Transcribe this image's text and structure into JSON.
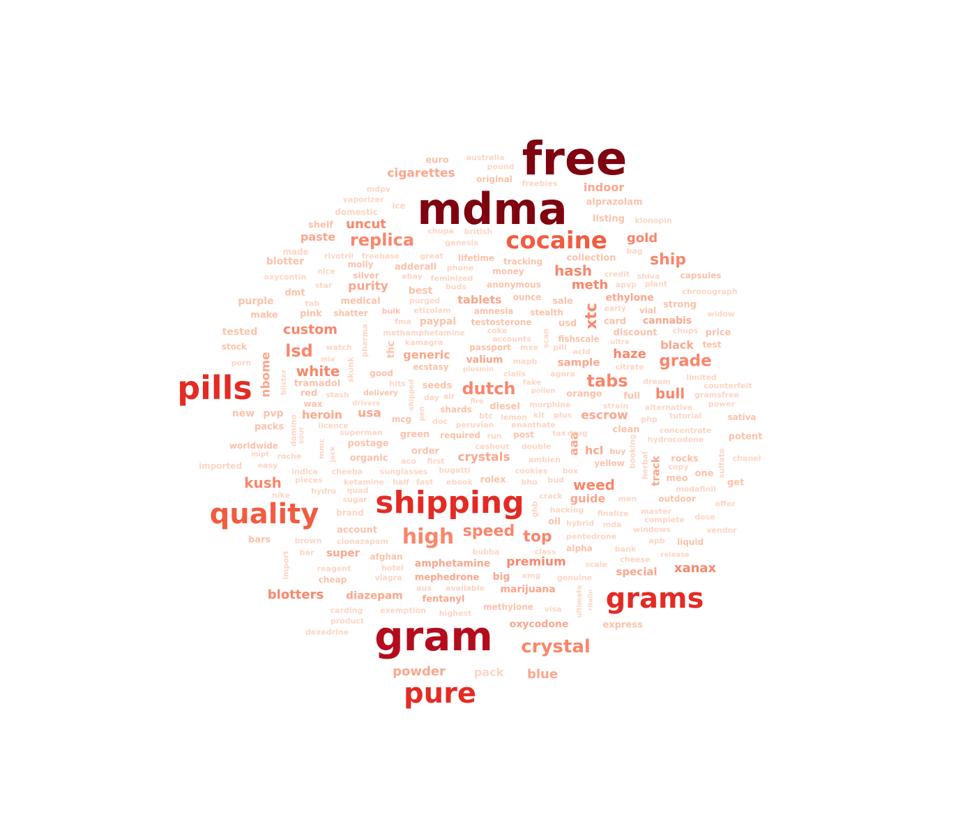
{
  "word_cloud": {
    "colors": {
      "tier1": "#7f0410",
      "tier2": "#b30d1d",
      "tier3": "#e32b24",
      "tier4": "#f25b40",
      "tier5": "#f9866b",
      "tier6": "#fba68c",
      "tier7": "#fcc1aa",
      "tier8": "#fdd5c4"
    },
    "words": [
      {
        "text": "free",
        "tier": 1
      },
      {
        "text": "mdma",
        "tier": 1
      },
      {
        "text": "gram",
        "tier": 2
      },
      {
        "text": "shipping",
        "tier": 3
      },
      {
        "text": "pills",
        "tier": 3
      },
      {
        "text": "grams",
        "tier": 3
      },
      {
        "text": "pure",
        "tier": 3
      },
      {
        "text": "quality",
        "tier": 4
      },
      {
        "text": "cocaine",
        "tier": 4
      },
      {
        "text": "high",
        "tier": 5
      },
      {
        "text": "crystal",
        "tier": 5
      },
      {
        "text": "replica",
        "tier": 5
      },
      {
        "text": "dutch",
        "tier": 5
      },
      {
        "text": "lsd",
        "tier": 5
      },
      {
        "text": "tabs",
        "tier": 5
      },
      {
        "text": "grade",
        "tier": 5
      },
      {
        "text": "speed",
        "tier": 5
      },
      {
        "text": "top",
        "tier": 5
      },
      {
        "text": "xtc",
        "tier": 5
      },
      {
        "text": "hash",
        "tier": 5
      },
      {
        "text": "ship",
        "tier": 5
      },
      {
        "text": "kush",
        "tier": 5
      },
      {
        "text": "weed",
        "tier": 5
      },
      {
        "text": "white",
        "tier": 5
      },
      {
        "text": "custom",
        "tier": 5
      },
      {
        "text": "meth",
        "tier": 5
      },
      {
        "text": "bull",
        "tier": 5
      },
      {
        "text": "haze",
        "tier": 5
      },
      {
        "text": "gold",
        "tier": 5
      },
      {
        "text": "uncut",
        "tier": 5
      },
      {
        "text": "xanax",
        "tier": 5
      },
      {
        "text": "blotters",
        "tier": 5
      },
      {
        "text": "premium",
        "tier": 5
      },
      {
        "text": "cigarettes",
        "tier": 6
      },
      {
        "text": "purity",
        "tier": 6
      },
      {
        "text": "tablets",
        "tier": 6
      },
      {
        "text": "crystals",
        "tier": 6
      },
      {
        "text": "escrow",
        "tier": 6
      },
      {
        "text": "powder",
        "tier": 6
      },
      {
        "text": "blue",
        "tier": 6
      },
      {
        "text": "nbome",
        "tier": 6
      },
      {
        "text": "aaa",
        "tier": 6
      },
      {
        "text": "track",
        "tier": 6
      },
      {
        "text": "hcl",
        "tier": 6
      },
      {
        "text": "usa",
        "tier": 6
      },
      {
        "text": "indoor",
        "tier": 6
      },
      {
        "text": "paste",
        "tier": 6
      },
      {
        "text": "heroin",
        "tier": 6
      },
      {
        "text": "generic",
        "tier": 6
      },
      {
        "text": "guide",
        "tier": 6
      },
      {
        "text": "diazepam",
        "tier": 6
      },
      {
        "text": "special",
        "tier": 6
      },
      {
        "text": "black",
        "tier": 6
      },
      {
        "text": "sample",
        "tier": 6
      },
      {
        "text": "marijuana",
        "tier": 6
      },
      {
        "text": "super",
        "tier": 6
      },
      {
        "text": "oxycodone",
        "tier": 6
      },
      {
        "text": "amphetamine",
        "tier": 6
      },
      {
        "text": "ethylone",
        "tier": 6
      },
      {
        "text": "cannabis",
        "tier": 6
      },
      {
        "text": "valium",
        "tier": 6
      },
      {
        "text": "mephedrone",
        "tier": 6
      },
      {
        "text": "fentanyl",
        "tier": 6
      },
      {
        "text": "big",
        "tier": 6
      },
      {
        "text": "pack",
        "tier": 8
      },
      {
        "text": "euro",
        "tier": 7
      },
      {
        "text": "australia",
        "tier": 8
      },
      {
        "text": "pound",
        "tier": 8
      },
      {
        "text": "original",
        "tier": 7
      },
      {
        "text": "freebies",
        "tier": 8
      },
      {
        "text": "mdpv",
        "tier": 8
      },
      {
        "text": "vaporizer",
        "tier": 8
      },
      {
        "text": "ice",
        "tier": 8
      },
      {
        "text": "alprazolam",
        "tier": 7
      },
      {
        "text": "domestic",
        "tier": 8
      },
      {
        "text": "listing",
        "tier": 7
      },
      {
        "text": "shelf",
        "tier": 7
      },
      {
        "text": "klonopin",
        "tier": 8
      },
      {
        "text": "chupa",
        "tier": 8
      },
      {
        "text": "british",
        "tier": 8
      },
      {
        "text": "genesis",
        "tier": 8
      },
      {
        "text": "bag",
        "tier": 8
      },
      {
        "text": "made",
        "tier": 8
      },
      {
        "text": "rivotril",
        "tier": 8
      },
      {
        "text": "freebase",
        "tier": 8
      },
      {
        "text": "great",
        "tier": 8
      },
      {
        "text": "lifetime",
        "tier": 7
      },
      {
        "text": "collection",
        "tier": 7
      },
      {
        "text": "blotter",
        "tier": 7
      },
      {
        "text": "molly",
        "tier": 7
      },
      {
        "text": "adderall",
        "tier": 7
      },
      {
        "text": "phone",
        "tier": 8
      },
      {
        "text": "tracking",
        "tier": 7
      },
      {
        "text": "money",
        "tier": 7
      },
      {
        "text": "nice",
        "tier": 8
      },
      {
        "text": "credit",
        "tier": 8
      },
      {
        "text": "oxycontin",
        "tier": 8
      },
      {
        "text": "silver",
        "tier": 7
      },
      {
        "text": "ebay",
        "tier": 8
      },
      {
        "text": "feminized",
        "tier": 8
      },
      {
        "text": "shiva",
        "tier": 8
      },
      {
        "text": "capsules",
        "tier": 7
      },
      {
        "text": "star",
        "tier": 8
      },
      {
        "text": "buds",
        "tier": 8
      },
      {
        "text": "anonymous",
        "tier": 7
      },
      {
        "text": "apvp",
        "tier": 8
      },
      {
        "text": "plant",
        "tier": 8
      },
      {
        "text": "dmt",
        "tier": 7
      },
      {
        "text": "best",
        "tier": 7
      },
      {
        "text": "chronograph",
        "tier": 8
      },
      {
        "text": "purple",
        "tier": 7
      },
      {
        "text": "tab",
        "tier": 8
      },
      {
        "text": "medical",
        "tier": 7
      },
      {
        "text": "purged",
        "tier": 8
      },
      {
        "text": "ounce",
        "tier": 7
      },
      {
        "text": "sale",
        "tier": 7
      },
      {
        "text": "strong",
        "tier": 7
      },
      {
        "text": "make",
        "tier": 7
      },
      {
        "text": "pink",
        "tier": 7
      },
      {
        "text": "shatter",
        "tier": 7
      },
      {
        "text": "bulk",
        "tier": 7
      },
      {
        "text": "etizolam",
        "tier": 8
      },
      {
        "text": "amnesia",
        "tier": 7
      },
      {
        "text": "stealth",
        "tier": 7
      },
      {
        "text": "early",
        "tier": 8
      },
      {
        "text": "vial",
        "tier": 7
      },
      {
        "text": "widow",
        "tier": 8
      },
      {
        "text": "paypal",
        "tier": 7
      },
      {
        "text": "testosterone",
        "tier": 7
      },
      {
        "text": "usd",
        "tier": 7
      },
      {
        "text": "card",
        "tier": 7
      },
      {
        "text": "fma",
        "tier": 8
      },
      {
        "text": "tested",
        "tier": 7
      },
      {
        "text": "coke",
        "tier": 8
      },
      {
        "text": "chups",
        "tier": 8
      },
      {
        "text": "price",
        "tier": 7
      },
      {
        "text": "methamphetamine",
        "tier": 8
      },
      {
        "text": "discount",
        "tier": 7
      },
      {
        "text": "fishscale",
        "tier": 7
      },
      {
        "text": "accounts",
        "tier": 8
      },
      {
        "text": "stock",
        "tier": 7
      },
      {
        "text": "kamagra",
        "tier": 8
      },
      {
        "text": "ultra",
        "tier": 8
      },
      {
        "text": "test",
        "tier": 7
      },
      {
        "text": "watch",
        "tier": 8
      },
      {
        "text": "passport",
        "tier": 7
      },
      {
        "text": "mxe",
        "tier": 8
      },
      {
        "text": "pill",
        "tier": 8
      },
      {
        "text": "acid",
        "tier": 8
      },
      {
        "text": "mix",
        "tier": 8
      },
      {
        "text": "mapb",
        "tier": 8
      },
      {
        "text": "citrate",
        "tier": 8
      },
      {
        "text": "porn",
        "tier": 8
      },
      {
        "text": "ecstasy",
        "tier": 7
      },
      {
        "text": "good",
        "tier": 7
      },
      {
        "text": "plusmin",
        "tier": 8
      },
      {
        "text": "cialis",
        "tier": 8
      },
      {
        "text": "agora",
        "tier": 8
      },
      {
        "text": "limited",
        "tier": 8
      },
      {
        "text": "tramadol",
        "tier": 7
      },
      {
        "text": "hits",
        "tier": 8
      },
      {
        "text": "fake",
        "tier": 8
      },
      {
        "text": "dream",
        "tier": 8
      },
      {
        "text": "counterfeit",
        "tier": 8
      },
      {
        "text": "seeds",
        "tier": 7
      },
      {
        "text": "pollen",
        "tier": 8
      },
      {
        "text": "red",
        "tier": 7
      },
      {
        "text": "delivery",
        "tier": 7
      },
      {
        "text": "stash",
        "tier": 8
      },
      {
        "text": "day",
        "tier": 8
      },
      {
        "text": "air",
        "tier": 8
      },
      {
        "text": "orange",
        "tier": 7
      },
      {
        "text": "full",
        "tier": 7
      },
      {
        "text": "gramsfree",
        "tier": 8
      },
      {
        "text": "fire",
        "tier": 8
      },
      {
        "text": "wax",
        "tier": 7
      },
      {
        "text": "drivers",
        "tier": 8
      },
      {
        "text": "power",
        "tier": 8
      },
      {
        "text": "diesel",
        "tier": 7
      },
      {
        "text": "morphine",
        "tier": 8
      },
      {
        "text": "strain",
        "tier": 8
      },
      {
        "text": "alternative",
        "tier": 8
      },
      {
        "text": "shards",
        "tier": 7
      },
      {
        "text": "btc",
        "tier": 8
      },
      {
        "text": "lemon",
        "tier": 8
      },
      {
        "text": "kit",
        "tier": 8
      },
      {
        "text": "plus",
        "tier": 8
      },
      {
        "text": "tutorial",
        "tier": 8
      },
      {
        "text": "new",
        "tier": 7
      },
      {
        "text": "pvp",
        "tier": 7
      },
      {
        "text": "sativa",
        "tier": 7
      },
      {
        "text": "mcg",
        "tier": 7
      },
      {
        "text": "doc",
        "tier": 8
      },
      {
        "text": "php",
        "tier": 8
      },
      {
        "text": "packs",
        "tier": 7
      },
      {
        "text": "licence",
        "tier": 8
      },
      {
        "text": "peruvian",
        "tier": 8
      },
      {
        "text": "enanthate",
        "tier": 8
      },
      {
        "text": "clean",
        "tier": 7
      },
      {
        "text": "concentrate",
        "tier": 8
      },
      {
        "text": "superman",
        "tier": 8
      },
      {
        "text": "green",
        "tier": 7
      },
      {
        "text": "required",
        "tier": 7
      },
      {
        "text": "run",
        "tier": 8
      },
      {
        "text": "post",
        "tier": 7
      },
      {
        "text": "tax",
        "tier": 8
      },
      {
        "text": "drug",
        "tier": 8
      },
      {
        "text": "hydrocodone",
        "tier": 8
      },
      {
        "text": "potent",
        "tier": 7
      },
      {
        "text": "worldwide",
        "tier": 7
      },
      {
        "text": "postage",
        "tier": 7
      },
      {
        "text": "cashout",
        "tier": 8
      },
      {
        "text": "double",
        "tier": 8
      },
      {
        "text": "mipt",
        "tier": 8
      },
      {
        "text": "order",
        "tier": 7
      },
      {
        "text": "buy",
        "tier": 7
      },
      {
        "text": "chanel",
        "tier": 8
      },
      {
        "text": "roche",
        "tier": 8
      },
      {
        "text": "organic",
        "tier": 7
      },
      {
        "text": "aco",
        "tier": 8
      },
      {
        "text": "first",
        "tier": 8
      },
      {
        "text": "ambien",
        "tier": 8
      },
      {
        "text": "yellow",
        "tier": 7
      },
      {
        "text": "rocks",
        "tier": 7
      },
      {
        "text": "imported",
        "tier": 8
      },
      {
        "text": "easy",
        "tier": 8
      },
      {
        "text": "copy",
        "tier": 8
      },
      {
        "text": "indica",
        "tier": 8
      },
      {
        "text": "cheeba",
        "tier": 8
      },
      {
        "text": "sunglasses",
        "tier": 8
      },
      {
        "text": "bugatti",
        "tier": 8
      },
      {
        "text": "cookies",
        "tier": 8
      },
      {
        "text": "box",
        "tier": 8
      },
      {
        "text": "one",
        "tier": 7
      },
      {
        "text": "pieces",
        "tier": 8
      },
      {
        "text": "ketamine",
        "tier": 8
      },
      {
        "text": "half",
        "tier": 8
      },
      {
        "text": "fast",
        "tier": 8
      },
      {
        "text": "ebook",
        "tier": 8
      },
      {
        "text": "rolex",
        "tier": 7
      },
      {
        "text": "bho",
        "tier": 8
      },
      {
        "text": "bud",
        "tier": 8
      },
      {
        "text": "meo",
        "tier": 7
      },
      {
        "text": "get",
        "tier": 7
      },
      {
        "text": "hydro",
        "tier": 8
      },
      {
        "text": "quad",
        "tier": 8
      },
      {
        "text": "modafinil",
        "tier": 8
      },
      {
        "text": "nike",
        "tier": 8
      },
      {
        "text": "sugar",
        "tier": 8
      },
      {
        "text": "crack",
        "tier": 8
      },
      {
        "text": "men",
        "tier": 8
      },
      {
        "text": "outdoor",
        "tier": 7
      },
      {
        "text": "offer",
        "tier": 8
      },
      {
        "text": "brand",
        "tier": 8
      },
      {
        "text": "hacking",
        "tier": 8
      },
      {
        "text": "finalize",
        "tier": 8
      },
      {
        "text": "master",
        "tier": 8
      },
      {
        "text": "dose",
        "tier": 8
      },
      {
        "text": "complete",
        "tier": 8
      },
      {
        "text": "oil",
        "tier": 7
      },
      {
        "text": "hybrid",
        "tier": 8
      },
      {
        "text": "mda",
        "tier": 8
      },
      {
        "text": "account",
        "tier": 7
      },
      {
        "text": "windows",
        "tier": 8
      },
      {
        "text": "vendor",
        "tier": 8
      },
      {
        "text": "bars",
        "tier": 7
      },
      {
        "text": "brown",
        "tier": 8
      },
      {
        "text": "clonazepam",
        "tier": 8
      },
      {
        "text": "pentedrone",
        "tier": 8
      },
      {
        "text": "apb",
        "tier": 8
      },
      {
        "text": "liquid",
        "tier": 7
      },
      {
        "text": "alpha",
        "tier": 7
      },
      {
        "text": "bank",
        "tier": 8
      },
      {
        "text": "bar",
        "tier": 8
      },
      {
        "text": "afghan",
        "tier": 7
      },
      {
        "text": "bubba",
        "tier": 8
      },
      {
        "text": "class",
        "tier": 8
      },
      {
        "text": "cheese",
        "tier": 8
      },
      {
        "text": "release",
        "tier": 8
      },
      {
        "text": "reagent",
        "tier": 8
      },
      {
        "text": "hotel",
        "tier": 8
      },
      {
        "text": "scale",
        "tier": 8
      },
      {
        "text": "cheap",
        "tier": 7
      },
      {
        "text": "viagra",
        "tier": 8
      },
      {
        "text": "xmg",
        "tier": 8
      },
      {
        "text": "genuine",
        "tier": 8
      },
      {
        "text": "aus",
        "tier": 8
      },
      {
        "text": "available",
        "tier": 8
      },
      {
        "text": "methylone",
        "tier": 7
      },
      {
        "text": "carding",
        "tier": 8
      },
      {
        "text": "exemption",
        "tier": 8
      },
      {
        "text": "visa",
        "tier": 8
      },
      {
        "text": "product",
        "tier": 8
      },
      {
        "text": "highest",
        "tier": 8
      },
      {
        "text": "express",
        "tier": 7
      },
      {
        "text": "dexedrine",
        "tier": 8
      },
      {
        "text": "thc",
        "tier": 7
      },
      {
        "text": "pharma",
        "tier": 8
      },
      {
        "text": "skunk",
        "tier": 8
      },
      {
        "text": "blister",
        "tier": 8
      },
      {
        "text": "shipped",
        "tier": 8
      },
      {
        "text": "pen",
        "tier": 8
      },
      {
        "text": "domino",
        "tier": 8
      },
      {
        "text": "sour",
        "tier": 8
      },
      {
        "text": "mmc",
        "tier": 8
      },
      {
        "text": "jack",
        "tier": 8
      },
      {
        "text": "scan",
        "tier": 8
      },
      {
        "text": "booking",
        "tier": 8
      },
      {
        "text": "herbal",
        "tier": 8
      },
      {
        "text": "sulfate",
        "tier": 8
      },
      {
        "text": "ghb",
        "tier": 8
      },
      {
        "text": "import",
        "tier": 8
      },
      {
        "text": "ultimate",
        "tier": 8
      },
      {
        "text": "ritalin",
        "tier": 8
      }
    ]
  }
}
